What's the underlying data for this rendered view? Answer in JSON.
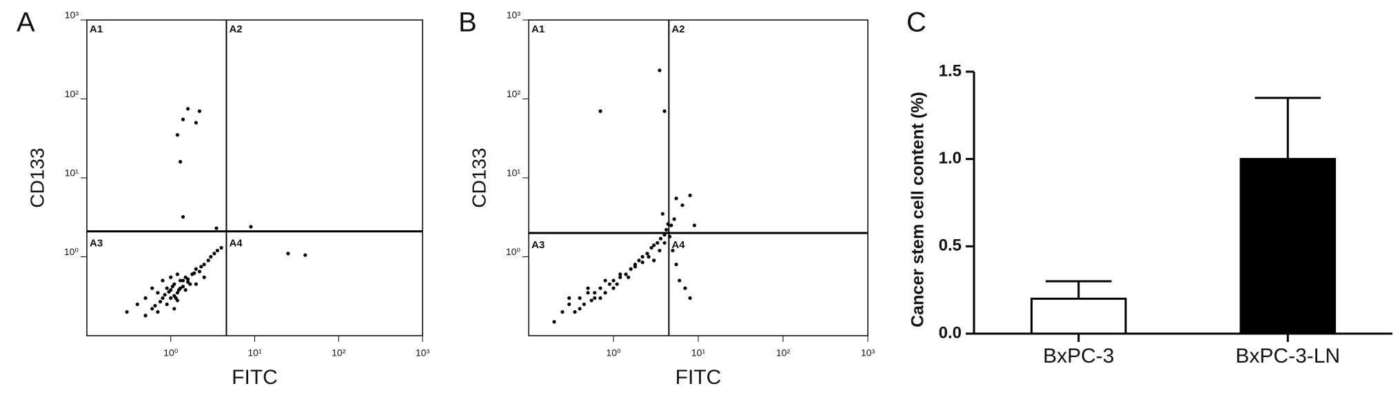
{
  "chart_data": [
    {
      "type": "scatter",
      "panel_label": "A",
      "x_label": "FITC",
      "y_label": "CD133",
      "xscale": "log",
      "yscale": "log",
      "xlim": [
        0.1,
        1000
      ],
      "ylim": [
        0.1,
        1000
      ],
      "xticks": [
        {
          "value": 1,
          "label": "10⁰"
        },
        {
          "value": 10,
          "label": "10¹"
        },
        {
          "value": 100,
          "label": "10²"
        },
        {
          "value": 1000,
          "label": "10³"
        }
      ],
      "yticks": [
        {
          "value": 1,
          "label": "10⁰"
        },
        {
          "value": 10,
          "label": "10¹"
        },
        {
          "value": 100,
          "label": "10²"
        },
        {
          "value": 1000,
          "label": "10³"
        }
      ],
      "quadrant_x": 4.6,
      "quadrant_y": 2.1,
      "quadrant_labels": [
        "A1",
        "A2",
        "A3",
        "A4"
      ],
      "color": "#000000",
      "x": [
        0.3,
        0.4,
        0.5,
        0.6,
        0.7,
        0.8,
        0.9,
        1.0,
        1.1,
        1.2,
        1.3,
        1.4,
        1.5,
        1.6,
        1.8,
        2.0,
        2.2,
        2.5,
        2.8,
        3.0,
        3.3,
        3.6,
        4.0,
        0.5,
        0.7,
        0.9,
        1.0,
        1.1,
        1.2,
        1.3,
        1.5,
        1.7,
        0.8,
        1.0,
        1.2,
        1.4,
        0.6,
        2.0,
        2.5,
        1.1,
        0.85,
        0.95,
        1.05,
        1.15,
        1.25,
        0.75,
        1.6,
        1.9,
        2.3,
        0.65,
        1.6,
        1.4,
        2.2,
        2.0,
        1.2,
        1.3,
        1.4,
        3.5,
        9,
        25,
        40
      ],
      "y": [
        0.2,
        0.25,
        0.3,
        0.22,
        0.35,
        0.3,
        0.4,
        0.38,
        0.45,
        0.35,
        0.5,
        0.42,
        0.55,
        0.48,
        0.6,
        0.7,
        0.65,
        0.8,
        0.9,
        1.0,
        1.1,
        1.2,
        1.3,
        0.18,
        0.2,
        0.25,
        0.3,
        0.32,
        0.28,
        0.4,
        0.38,
        0.45,
        0.5,
        0.55,
        0.6,
        0.5,
        0.4,
        0.45,
        0.55,
        0.22,
        0.33,
        0.36,
        0.42,
        0.3,
        0.38,
        0.27,
        0.52,
        0.62,
        0.75,
        0.24,
        75,
        55,
        70,
        50,
        35,
        16,
        3.2,
        2.3,
        2.4,
        1.1,
        1.05
      ]
    },
    {
      "type": "scatter",
      "panel_label": "B",
      "x_label": "FITC",
      "y_label": "CD133",
      "xscale": "log",
      "yscale": "log",
      "xlim": [
        0.1,
        1000
      ],
      "ylim": [
        0.1,
        1000
      ],
      "xticks": [
        {
          "value": 1,
          "label": "10⁰"
        },
        {
          "value": 10,
          "label": "10¹"
        },
        {
          "value": 100,
          "label": "10²"
        },
        {
          "value": 1000,
          "label": "10³"
        }
      ],
      "yticks": [
        {
          "value": 1,
          "label": "10⁰"
        },
        {
          "value": 10,
          "label": "10¹"
        },
        {
          "value": 100,
          "label": "10²"
        },
        {
          "value": 1000,
          "label": "10³"
        }
      ],
      "quadrant_x": 4.5,
      "quadrant_y": 2.0,
      "quadrant_labels": [
        "A1",
        "A2",
        "A3",
        "A4"
      ],
      "color": "#000000",
      "x": [
        0.2,
        0.25,
        0.3,
        0.35,
        0.4,
        0.45,
        0.5,
        0.55,
        0.6,
        0.7,
        0.8,
        0.9,
        1.0,
        1.1,
        1.2,
        1.4,
        1.6,
        1.8,
        2.0,
        2.2,
        2.5,
        2.8,
        3.0,
        3.3,
        3.6,
        4.0,
        4.2,
        4.4,
        0.3,
        0.4,
        0.5,
        0.6,
        0.7,
        0.8,
        1.0,
        1.2,
        1.5,
        1.8,
        2.2,
        2.6,
        3.0,
        3.5,
        4.0,
        4.6,
        5.0,
        5.5,
        6.0,
        7.0,
        8.0,
        5.2,
        6.5,
        4.8,
        0.7,
        3.5,
        4.0,
        8,
        5.5,
        9,
        3.8
      ],
      "y": [
        0.15,
        0.2,
        0.25,
        0.2,
        0.3,
        0.25,
        0.35,
        0.28,
        0.3,
        0.4,
        0.35,
        0.45,
        0.5,
        0.45,
        0.55,
        0.6,
        0.7,
        0.8,
        0.9,
        1.0,
        1.1,
        1.3,
        1.4,
        1.5,
        1.7,
        1.9,
        2.2,
        2.6,
        0.3,
        0.22,
        0.4,
        0.35,
        0.3,
        0.5,
        0.4,
        0.6,
        0.55,
        0.75,
        0.85,
        1.0,
        0.9,
        1.2,
        1.5,
        1.8,
        1.2,
        0.8,
        0.5,
        0.4,
        0.3,
        3.0,
        4.5,
        2.5,
        70,
        230,
        70,
        6,
        5.5,
        2.5,
        3.5
      ]
    },
    {
      "type": "bar",
      "panel_label": "C",
      "y_label": "Cancer stem cell content (%)",
      "categories": [
        "BxPC-3",
        "BxPC-3-LN"
      ],
      "values": [
        0.2,
        1.0
      ],
      "errors": [
        0.1,
        0.35
      ],
      "colors": [
        "#ffffff",
        "#000000"
      ],
      "ylim": [
        0,
        1.5
      ],
      "yticks": [
        {
          "value": 0,
          "label": "0.0"
        },
        0.5,
        {
          "value": 1,
          "label": "1.0"
        },
        1.5
      ]
    }
  ]
}
